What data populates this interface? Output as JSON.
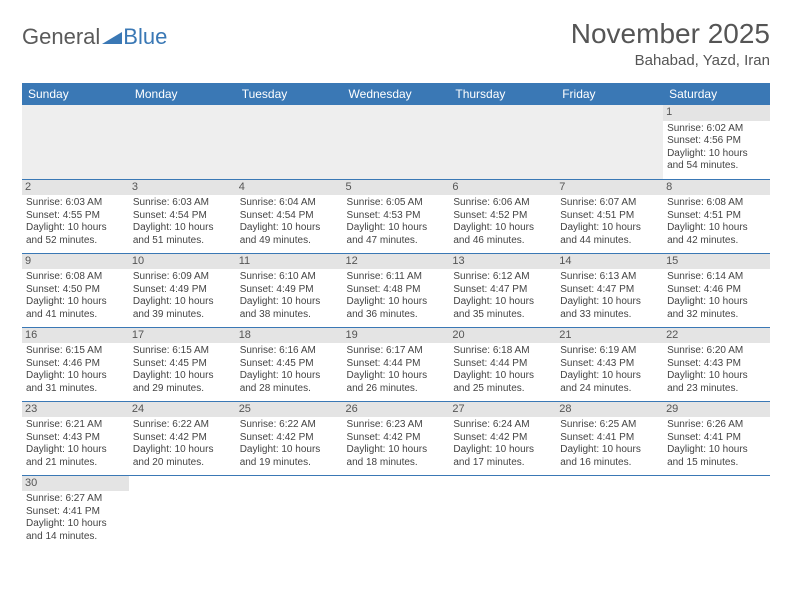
{
  "brand": {
    "part1": "General",
    "part2": "Blue"
  },
  "title": "November 2025",
  "location": "Bahabad, Yazd, Iran",
  "colors": {
    "header_bg": "#3a78b5",
    "header_fg": "#ffffff",
    "daynum_bg": "#e4e4e4",
    "row_border": "#3a78b5",
    "brand_blue": "#3a78b5",
    "brand_gray": "#5a5a5a"
  },
  "weekdays": [
    "Sunday",
    "Monday",
    "Tuesday",
    "Wednesday",
    "Thursday",
    "Friday",
    "Saturday"
  ],
  "weeks": [
    [
      null,
      null,
      null,
      null,
      null,
      null,
      {
        "n": "1",
        "sr": "Sunrise: 6:02 AM",
        "ss": "Sunset: 4:56 PM",
        "dl": "Daylight: 10 hours and 54 minutes."
      }
    ],
    [
      {
        "n": "2",
        "sr": "Sunrise: 6:03 AM",
        "ss": "Sunset: 4:55 PM",
        "dl": "Daylight: 10 hours and 52 minutes."
      },
      {
        "n": "3",
        "sr": "Sunrise: 6:03 AM",
        "ss": "Sunset: 4:54 PM",
        "dl": "Daylight: 10 hours and 51 minutes."
      },
      {
        "n": "4",
        "sr": "Sunrise: 6:04 AM",
        "ss": "Sunset: 4:54 PM",
        "dl": "Daylight: 10 hours and 49 minutes."
      },
      {
        "n": "5",
        "sr": "Sunrise: 6:05 AM",
        "ss": "Sunset: 4:53 PM",
        "dl": "Daylight: 10 hours and 47 minutes."
      },
      {
        "n": "6",
        "sr": "Sunrise: 6:06 AM",
        "ss": "Sunset: 4:52 PM",
        "dl": "Daylight: 10 hours and 46 minutes."
      },
      {
        "n": "7",
        "sr": "Sunrise: 6:07 AM",
        "ss": "Sunset: 4:51 PM",
        "dl": "Daylight: 10 hours and 44 minutes."
      },
      {
        "n": "8",
        "sr": "Sunrise: 6:08 AM",
        "ss": "Sunset: 4:51 PM",
        "dl": "Daylight: 10 hours and 42 minutes."
      }
    ],
    [
      {
        "n": "9",
        "sr": "Sunrise: 6:08 AM",
        "ss": "Sunset: 4:50 PM",
        "dl": "Daylight: 10 hours and 41 minutes."
      },
      {
        "n": "10",
        "sr": "Sunrise: 6:09 AM",
        "ss": "Sunset: 4:49 PM",
        "dl": "Daylight: 10 hours and 39 minutes."
      },
      {
        "n": "11",
        "sr": "Sunrise: 6:10 AM",
        "ss": "Sunset: 4:49 PM",
        "dl": "Daylight: 10 hours and 38 minutes."
      },
      {
        "n": "12",
        "sr": "Sunrise: 6:11 AM",
        "ss": "Sunset: 4:48 PM",
        "dl": "Daylight: 10 hours and 36 minutes."
      },
      {
        "n": "13",
        "sr": "Sunrise: 6:12 AM",
        "ss": "Sunset: 4:47 PM",
        "dl": "Daylight: 10 hours and 35 minutes."
      },
      {
        "n": "14",
        "sr": "Sunrise: 6:13 AM",
        "ss": "Sunset: 4:47 PM",
        "dl": "Daylight: 10 hours and 33 minutes."
      },
      {
        "n": "15",
        "sr": "Sunrise: 6:14 AM",
        "ss": "Sunset: 4:46 PM",
        "dl": "Daylight: 10 hours and 32 minutes."
      }
    ],
    [
      {
        "n": "16",
        "sr": "Sunrise: 6:15 AM",
        "ss": "Sunset: 4:46 PM",
        "dl": "Daylight: 10 hours and 31 minutes."
      },
      {
        "n": "17",
        "sr": "Sunrise: 6:15 AM",
        "ss": "Sunset: 4:45 PM",
        "dl": "Daylight: 10 hours and 29 minutes."
      },
      {
        "n": "18",
        "sr": "Sunrise: 6:16 AM",
        "ss": "Sunset: 4:45 PM",
        "dl": "Daylight: 10 hours and 28 minutes."
      },
      {
        "n": "19",
        "sr": "Sunrise: 6:17 AM",
        "ss": "Sunset: 4:44 PM",
        "dl": "Daylight: 10 hours and 26 minutes."
      },
      {
        "n": "20",
        "sr": "Sunrise: 6:18 AM",
        "ss": "Sunset: 4:44 PM",
        "dl": "Daylight: 10 hours and 25 minutes."
      },
      {
        "n": "21",
        "sr": "Sunrise: 6:19 AM",
        "ss": "Sunset: 4:43 PM",
        "dl": "Daylight: 10 hours and 24 minutes."
      },
      {
        "n": "22",
        "sr": "Sunrise: 6:20 AM",
        "ss": "Sunset: 4:43 PM",
        "dl": "Daylight: 10 hours and 23 minutes."
      }
    ],
    [
      {
        "n": "23",
        "sr": "Sunrise: 6:21 AM",
        "ss": "Sunset: 4:43 PM",
        "dl": "Daylight: 10 hours and 21 minutes."
      },
      {
        "n": "24",
        "sr": "Sunrise: 6:22 AM",
        "ss": "Sunset: 4:42 PM",
        "dl": "Daylight: 10 hours and 20 minutes."
      },
      {
        "n": "25",
        "sr": "Sunrise: 6:22 AM",
        "ss": "Sunset: 4:42 PM",
        "dl": "Daylight: 10 hours and 19 minutes."
      },
      {
        "n": "26",
        "sr": "Sunrise: 6:23 AM",
        "ss": "Sunset: 4:42 PM",
        "dl": "Daylight: 10 hours and 18 minutes."
      },
      {
        "n": "27",
        "sr": "Sunrise: 6:24 AM",
        "ss": "Sunset: 4:42 PM",
        "dl": "Daylight: 10 hours and 17 minutes."
      },
      {
        "n": "28",
        "sr": "Sunrise: 6:25 AM",
        "ss": "Sunset: 4:41 PM",
        "dl": "Daylight: 10 hours and 16 minutes."
      },
      {
        "n": "29",
        "sr": "Sunrise: 6:26 AM",
        "ss": "Sunset: 4:41 PM",
        "dl": "Daylight: 10 hours and 15 minutes."
      }
    ],
    [
      {
        "n": "30",
        "sr": "Sunrise: 6:27 AM",
        "ss": "Sunset: 4:41 PM",
        "dl": "Daylight: 10 hours and 14 minutes."
      },
      null,
      null,
      null,
      null,
      null,
      null
    ]
  ]
}
